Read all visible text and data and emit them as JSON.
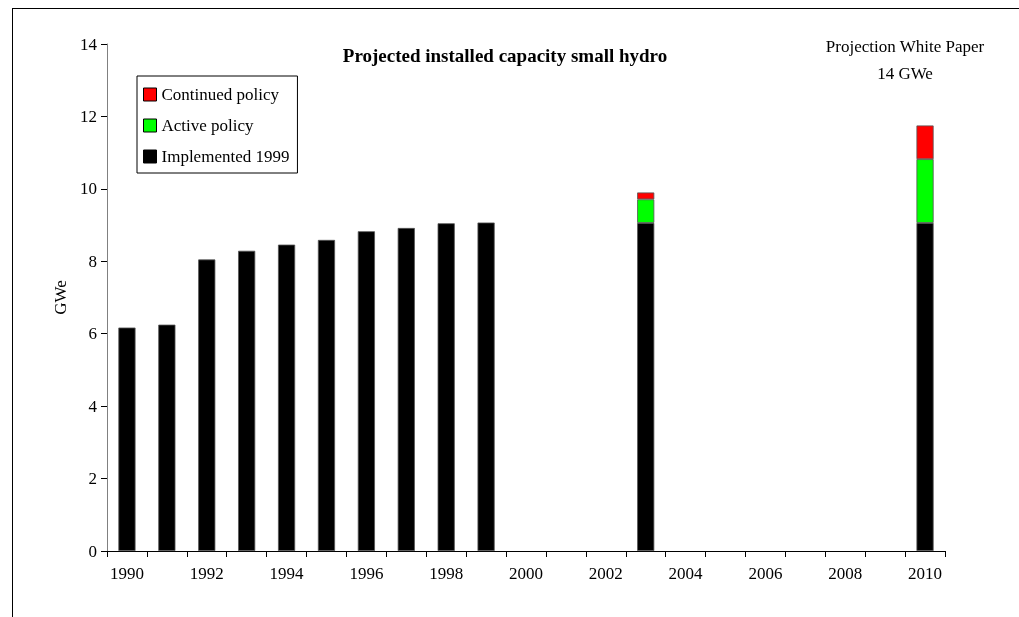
{
  "chart_data": {
    "type": "bar",
    "title": "Projected installed capacity small hydro",
    "ylabel": "GWe",
    "annotations": [
      "Projection White Paper\n14 GWe"
    ],
    "categories": [
      "1990",
      null,
      "1992",
      null,
      "1994",
      null,
      "1996",
      null,
      "1998",
      null,
      "2000",
      null,
      "2002",
      null,
      "2004",
      null,
      "2006",
      null,
      "2008",
      null,
      "2010"
    ],
    "series": [
      {
        "name": "Implemented 1999",
        "color": "#000000",
        "values": [
          6.17,
          6.25,
          8.05,
          8.29,
          8.46,
          8.59,
          8.83,
          8.92,
          9.05,
          9.07,
          null,
          null,
          null,
          9.06,
          null,
          null,
          null,
          null,
          null,
          null,
          9.06
        ]
      },
      {
        "name": "Active policy",
        "color": "#00ff00",
        "values": [
          null,
          null,
          null,
          null,
          null,
          null,
          null,
          null,
          null,
          null,
          null,
          null,
          null,
          0.65,
          null,
          null,
          null,
          null,
          null,
          null,
          1.76
        ]
      },
      {
        "name": "Continued policy",
        "color": "#ff0000",
        "values": [
          null,
          null,
          null,
          null,
          null,
          null,
          null,
          null,
          null,
          null,
          null,
          null,
          null,
          0.19,
          null,
          null,
          null,
          null,
          null,
          null,
          0.93
        ]
      }
    ],
    "stacked": true,
    "ylim": [
      0,
      14
    ],
    "yticks": [
      0,
      2,
      4,
      6,
      8,
      10,
      12,
      14
    ],
    "grid": false,
    "legend": "top left"
  }
}
